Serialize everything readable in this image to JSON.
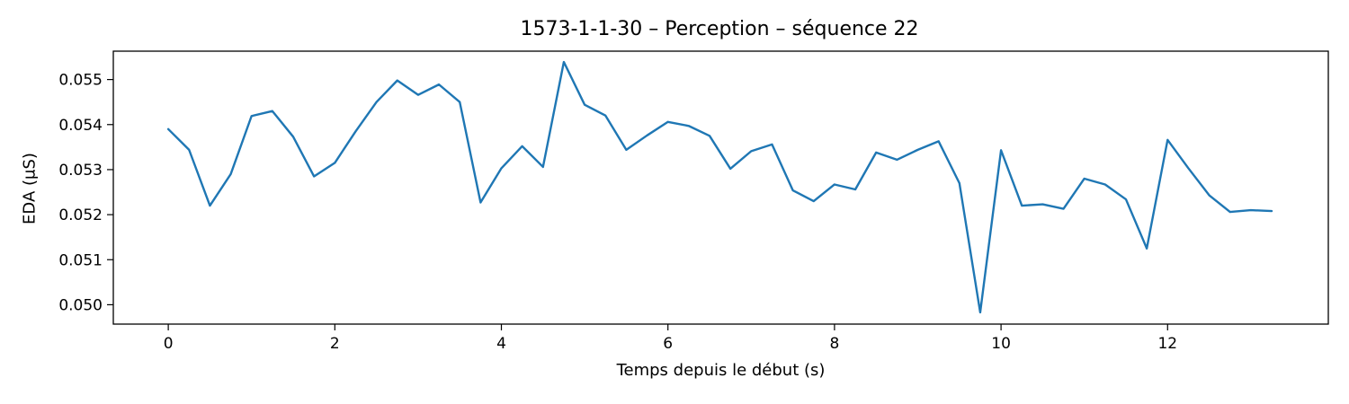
{
  "chart_data": {
    "type": "line",
    "title": "1573-1-1-30 – Perception – séquence 22",
    "xlabel": "Temps depuis le début (s)",
    "ylabel": "EDA (µS)",
    "xlim": [
      -0.66,
      13.93
    ],
    "ylim": [
      0.04957,
      0.05563
    ],
    "xticks": [
      0,
      2,
      4,
      6,
      8,
      10,
      12
    ],
    "xtick_labels": [
      "0",
      "2",
      "4",
      "6",
      "8",
      "10",
      "12"
    ],
    "yticks": [
      0.05,
      0.051,
      0.052,
      0.053,
      0.054,
      0.055
    ],
    "ytick_labels": [
      "0.050",
      "0.051",
      "0.052",
      "0.053",
      "0.054",
      "0.055"
    ],
    "grid": false,
    "series": [
      {
        "color": "#1f77b4",
        "x": [
          0,
          0.25,
          0.5,
          0.75,
          1,
          1.25,
          1.5,
          1.75,
          2,
          2.25,
          2.5,
          2.75,
          3,
          3.25,
          3.5,
          3.75,
          4,
          4.25,
          4.5,
          4.75,
          5,
          5.25,
          5.5,
          5.75,
          6,
          6.25,
          6.5,
          6.75,
          7,
          7.25,
          7.5,
          7.75,
          8,
          8.25,
          8.5,
          8.75,
          9,
          9.25,
          9.5,
          9.75,
          10,
          10.25,
          10.5,
          10.75,
          11,
          11.25,
          11.5,
          11.75,
          12,
          12.25,
          12.5,
          12.75,
          13,
          13.25
        ],
        "y": [
          0.0539,
          0.05344,
          0.0522,
          0.0529,
          0.05419,
          0.0543,
          0.05373,
          0.05285,
          0.05315,
          0.05385,
          0.0545,
          0.05498,
          0.05466,
          0.05489,
          0.0545,
          0.05227,
          0.05303,
          0.05352,
          0.05306,
          0.05539,
          0.05444,
          0.0542,
          0.05344,
          0.05376,
          0.05406,
          0.05397,
          0.05375,
          0.05302,
          0.05341,
          0.05356,
          0.05254,
          0.0523,
          0.05267,
          0.05256,
          0.05338,
          0.05322,
          0.05344,
          0.05363,
          0.0527,
          0.04983,
          0.05343,
          0.0522,
          0.05223,
          0.05213,
          0.0528,
          0.05267,
          0.05234,
          0.05125,
          0.05366,
          0.05303,
          0.05243,
          0.05206,
          0.0521,
          0.05208
        ]
      }
    ]
  }
}
